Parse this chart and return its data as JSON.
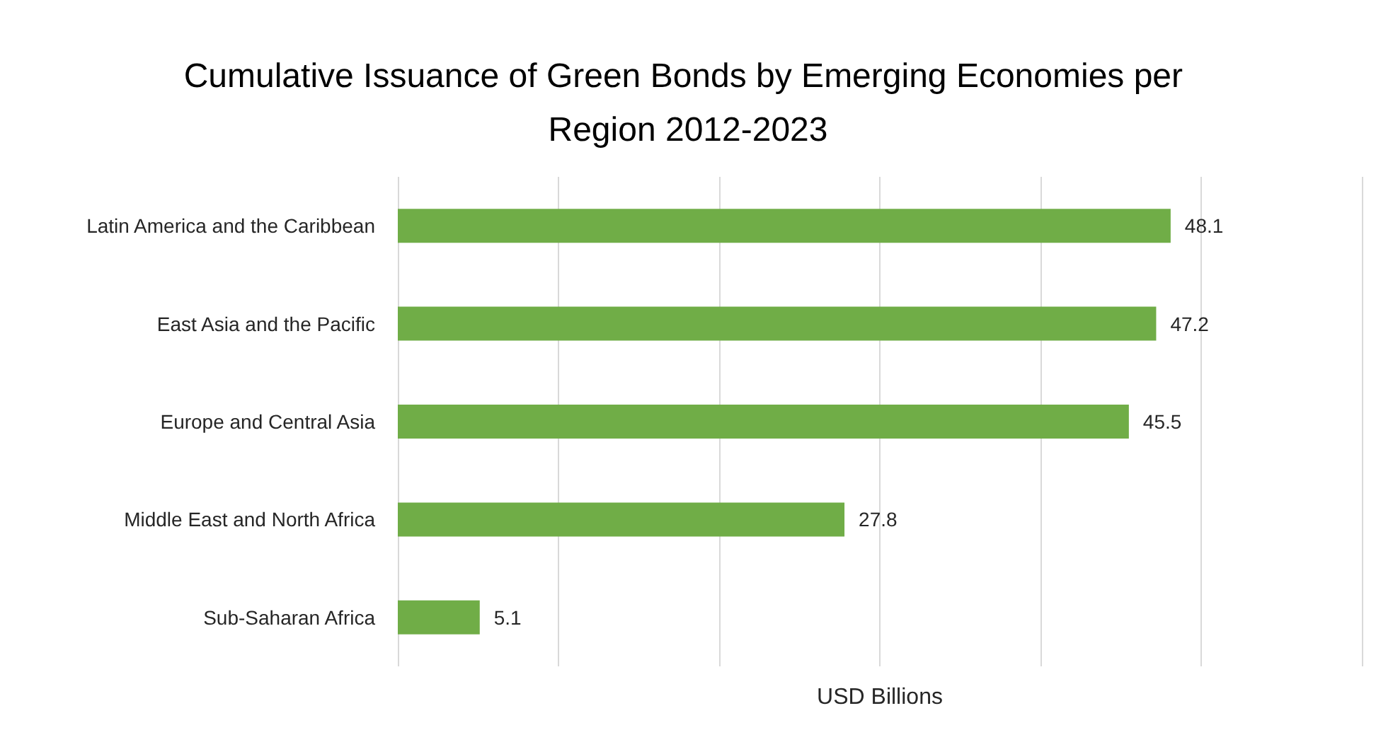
{
  "chart_data": {
    "type": "bar",
    "orientation": "horizontal",
    "title": "Cumulative Issuance of Green Bonds by Emerging Economies per Region 2012-2023",
    "xlabel": "USD Billions",
    "categories": [
      "Latin America and the Caribbean",
      "East Asia and the Pacific",
      "Europe and Central Asia",
      "Middle East and North Africa",
      "Sub-Saharan Africa"
    ],
    "values": [
      48.1,
      47.2,
      45.5,
      27.8,
      5.1
    ],
    "color": "#70ad47",
    "xlim": [
      0,
      60
    ],
    "xticks": [
      {
        "value": 0,
        "label": null
      },
      {
        "value": 10,
        "label": null
      },
      {
        "value": 20,
        "label": null
      },
      {
        "value": 30,
        "label": null
      },
      {
        "value": 40,
        "label": null
      },
      {
        "value": 50,
        "label": null
      },
      {
        "value": 60,
        "label": null
      }
    ],
    "grid": "x",
    "tick_labels": "y",
    "data_labels": true
  }
}
